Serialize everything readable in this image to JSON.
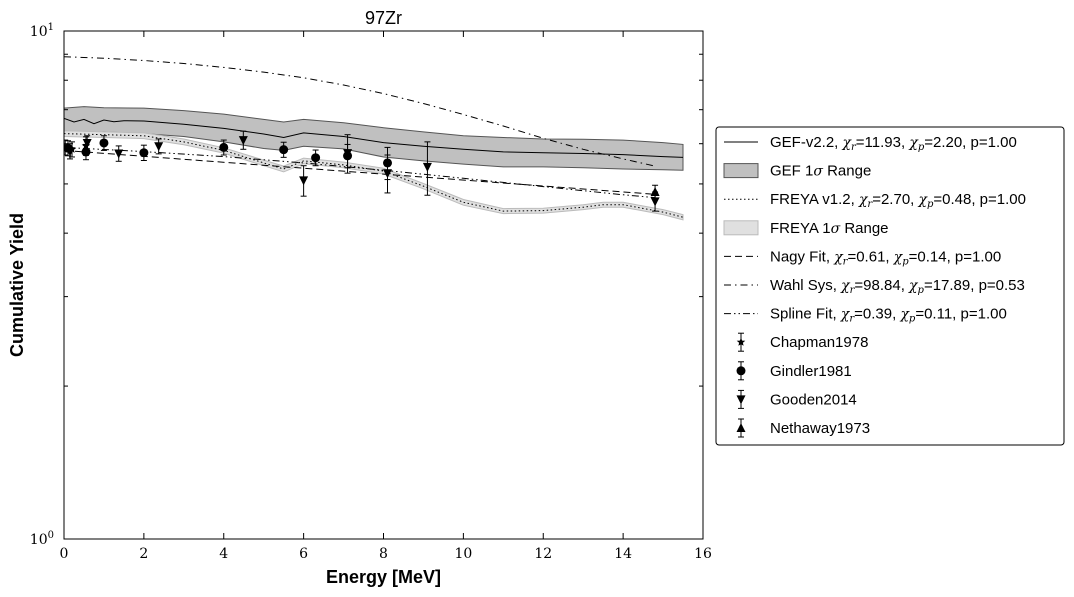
{
  "chart_data": {
    "type": "line",
    "title": "97Zr",
    "xlabel": "Energy [MeV]",
    "ylabel": "Cumulative Yield",
    "xlim": [
      0,
      16
    ],
    "ylim": [
      1,
      10
    ],
    "yscale": "log",
    "grid": false,
    "legend_placement": "right",
    "x_ticks": [
      "0",
      "2",
      "4",
      "6",
      "8",
      "10",
      "12",
      "14",
      "16"
    ],
    "y_ticks": [
      {
        "base": "10",
        "exp": "1",
        "value": 10
      },
      {
        "base": "10",
        "exp": "0",
        "value": 1
      }
    ],
    "series": [
      {
        "name": "GEF-v2.2",
        "stats": {
          "chi_r": "11.93",
          "chi_p": "2.20",
          "p": "1.00"
        },
        "style": "solid",
        "color": "#000000",
        "x": [
          0.0,
          0.25,
          0.5,
          0.75,
          1.0,
          1.25,
          1.5,
          2.0,
          3.0,
          4.0,
          5.0,
          5.5,
          6.0,
          7.0,
          8.0,
          9.0,
          10.0,
          11.0,
          12.0,
          13.0,
          14.0,
          15.0,
          15.5
        ],
        "y": [
          6.73,
          6.62,
          6.7,
          6.57,
          6.68,
          6.63,
          6.66,
          6.65,
          6.55,
          6.43,
          6.27,
          6.17,
          6.3,
          6.2,
          6.03,
          5.93,
          5.85,
          5.78,
          5.76,
          5.74,
          5.71,
          5.66,
          5.64
        ]
      },
      {
        "name": "GEF 1σ Range",
        "type": "band",
        "color": "#c0c0c0",
        "edge": "#555555",
        "x": [
          0.0,
          0.5,
          1.0,
          2.0,
          3.0,
          4.0,
          5.0,
          5.5,
          6.0,
          7.0,
          8.0,
          9.0,
          10.0,
          11.0,
          12.0,
          13.0,
          14.0,
          15.0,
          15.5
        ],
        "y_low": [
          6.35,
          6.3,
          6.33,
          6.28,
          6.2,
          6.05,
          5.87,
          5.82,
          5.93,
          5.86,
          5.65,
          5.55,
          5.47,
          5.4,
          5.4,
          5.38,
          5.35,
          5.33,
          5.32
        ],
        "y_high": [
          7.05,
          7.1,
          7.06,
          7.05,
          6.97,
          6.86,
          6.7,
          6.62,
          6.7,
          6.6,
          6.45,
          6.33,
          6.22,
          6.17,
          6.13,
          6.12,
          6.1,
          6.03,
          5.98
        ]
      },
      {
        "name": "FREYA v1.2",
        "stats": {
          "chi_r": "2.70",
          "chi_p": "0.48",
          "p": "1.00"
        },
        "style": "dotted",
        "color": "#000000",
        "x": [
          0.0,
          1.0,
          2.0,
          3.0,
          4.0,
          5.0,
          5.5,
          6.0,
          7.0,
          8.0,
          9.0,
          10.0,
          11.0,
          12.0,
          13.0,
          13.5,
          14.0,
          15.0,
          15.5
        ],
        "y": [
          6.28,
          6.25,
          6.22,
          6.05,
          5.82,
          5.5,
          5.35,
          5.55,
          5.45,
          5.3,
          4.95,
          4.6,
          4.42,
          4.43,
          4.5,
          4.55,
          4.55,
          4.4,
          4.3
        ]
      },
      {
        "name": "FREYA 1σ Range",
        "type": "band",
        "color": "#e0e0e0",
        "edge": "#bbbbbb",
        "x": [
          0.0,
          1.0,
          2.0,
          3.0,
          4.0,
          5.0,
          5.5,
          6.0,
          7.0,
          8.0,
          9.0,
          10.0,
          11.0,
          12.0,
          13.0,
          13.5,
          14.0,
          15.0,
          15.5
        ],
        "y_low": [
          6.2,
          6.17,
          6.14,
          5.97,
          5.75,
          5.43,
          5.28,
          5.48,
          5.38,
          5.23,
          4.89,
          4.54,
          4.37,
          4.38,
          4.45,
          4.5,
          4.5,
          4.35,
          4.25
        ],
        "y_high": [
          6.36,
          6.33,
          6.3,
          6.13,
          5.89,
          5.57,
          5.42,
          5.62,
          5.52,
          5.37,
          5.01,
          4.66,
          4.47,
          4.48,
          4.55,
          4.6,
          4.6,
          4.45,
          4.35
        ]
      },
      {
        "name": "Nagy Fit",
        "stats": {
          "chi_r": "0.61",
          "chi_p": "0.14",
          "p": "1.00"
        },
        "style": "dashed",
        "color": "#000000",
        "x": [
          0.0,
          14.8
        ],
        "y": [
          5.82,
          4.77
        ]
      },
      {
        "name": "Wahl Sys",
        "stats": {
          "chi_r": "98.84",
          "chi_p": "17.89",
          "p": "0.53"
        },
        "style": "dashdot",
        "color": "#000000",
        "x": [
          0.0,
          1.0,
          2.0,
          3.0,
          4.0,
          5.0,
          6.0,
          7.0,
          8.0,
          9.0,
          10.0,
          11.0,
          12.0,
          13.0,
          14.0,
          14.8
        ],
        "y": [
          8.9,
          8.84,
          8.75,
          8.63,
          8.48,
          8.3,
          8.09,
          7.83,
          7.53,
          7.2,
          6.85,
          6.5,
          6.15,
          5.85,
          5.6,
          5.42
        ]
      },
      {
        "name": "Spline Fit",
        "stats": {
          "chi_r": "0.39",
          "chi_p": "0.11",
          "p": "1.00"
        },
        "style": "dashdotdot",
        "color": "#000000",
        "x": [
          0.0,
          2.0,
          4.0,
          6.0,
          8.0,
          10.0,
          12.0,
          14.0,
          14.8
        ],
        "y": [
          5.9,
          5.79,
          5.66,
          5.5,
          5.32,
          5.13,
          4.94,
          4.76,
          4.7
        ]
      },
      {
        "name": "Chapman1978",
        "type": "errorbar",
        "marker": "star",
        "color": "#000000",
        "x": [
          0.03,
          0.2,
          0.55
        ],
        "y": [
          5.9,
          5.85,
          5.94
        ],
        "err": [
          0.2,
          0.2,
          0.25
        ]
      },
      {
        "name": "Gindler1981",
        "type": "errorbar",
        "marker": "circle",
        "color": "#000000",
        "x": [
          0.1,
          0.55,
          1.0,
          2.0,
          4.0,
          5.5,
          6.3,
          7.1,
          8.1
        ],
        "y": [
          5.88,
          5.78,
          6.02,
          5.76,
          5.9,
          5.84,
          5.63,
          5.68,
          5.5
        ],
        "err": [
          0.2,
          0.2,
          0.2,
          0.2,
          0.2,
          0.2,
          0.2,
          0.3,
          0.4
        ]
      },
      {
        "name": "Gooden2014",
        "type": "errorbar",
        "marker": "triangle-down",
        "color": "#000000",
        "x": [
          0.15,
          0.58,
          1.37,
          2.37,
          4.49,
          6.0,
          7.1,
          8.1,
          9.1,
          14.8
        ],
        "y": [
          5.8,
          6.02,
          5.74,
          5.93,
          6.1,
          5.08,
          5.75,
          5.25,
          5.4,
          4.62
        ],
        "err": [
          0.2,
          0.2,
          0.2,
          0.2,
          0.25,
          0.35,
          0.5,
          0.45,
          0.65,
          0.2
        ]
      },
      {
        "name": "Nethaway1973",
        "type": "errorbar",
        "marker": "triangle-up",
        "color": "#000000",
        "x": [
          14.8
        ],
        "y": [
          4.82
        ],
        "err": [
          0.15
        ]
      }
    ]
  }
}
